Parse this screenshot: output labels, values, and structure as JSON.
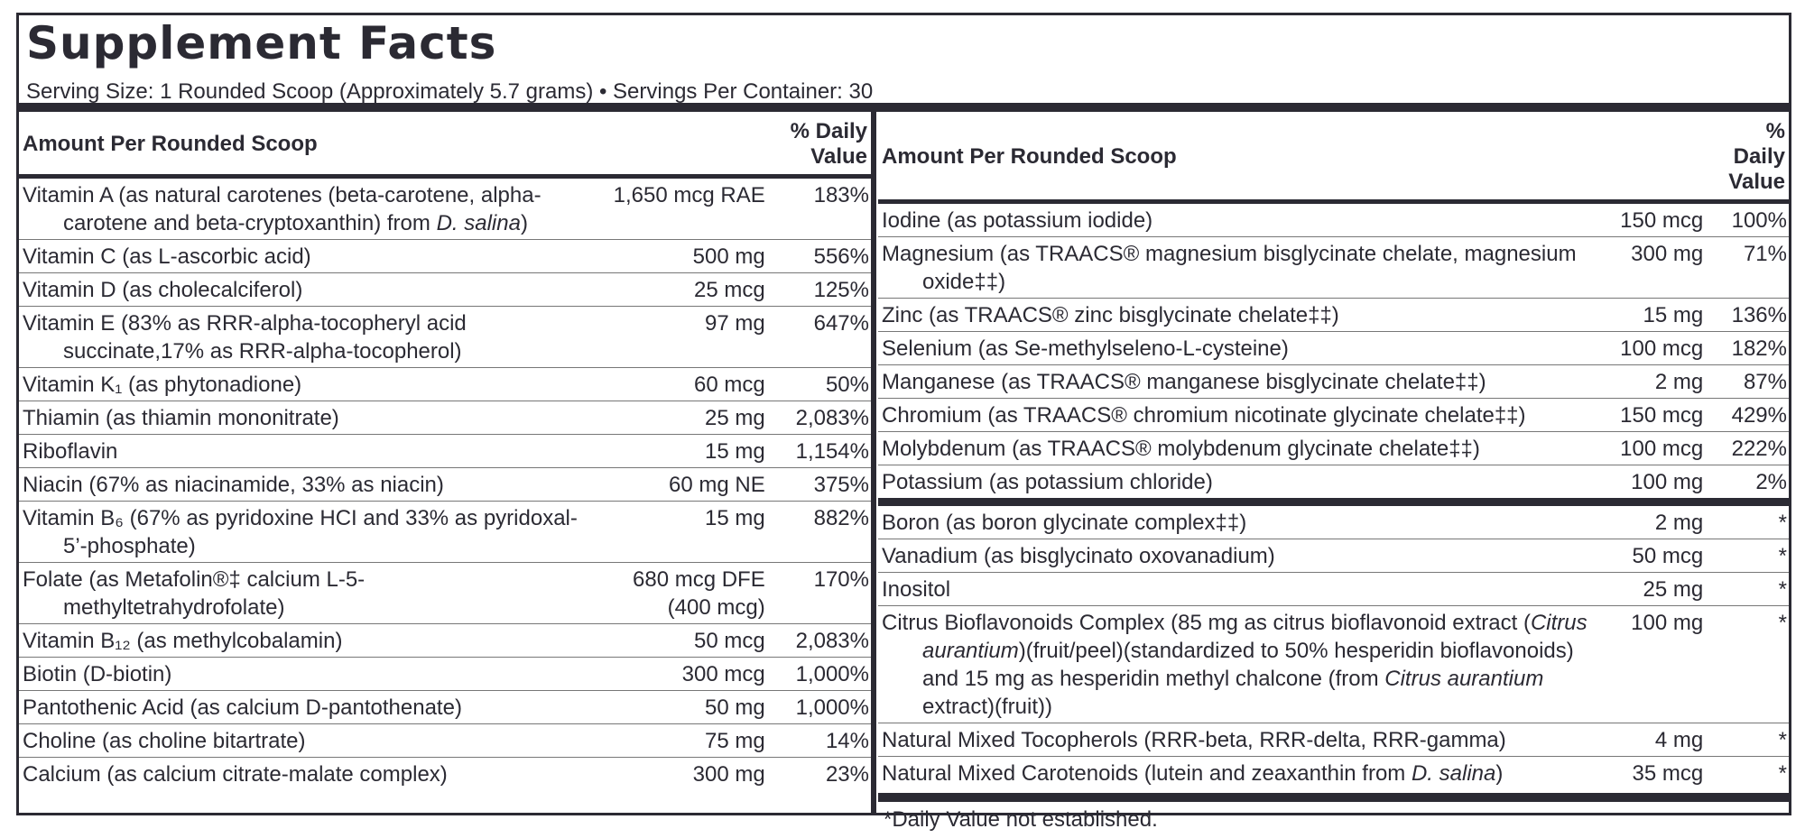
{
  "title": "Supplement Facts",
  "serving": "Serving Size: 1 Rounded Scoop (Approximately 5.7 grams) • Servings Per Container: 30",
  "left": {
    "header": {
      "amount_label": "Amount Per Rounded Scoop",
      "dv_label": "% Daily Value"
    },
    "rows": [
      {
        "name": [
          "Vitamin A (as natural carotenes (beta-carotene, alpha-carotene and beta-cryptoxanthin) from ",
          "D. salina",
          ")"
        ],
        "amount": "1,650 mcg RAE",
        "dv": "183%"
      },
      {
        "name": [
          "Vitamin C (as L-ascorbic acid)"
        ],
        "amount": "500 mg",
        "dv": "556%"
      },
      {
        "name": [
          "Vitamin D (as cholecalciferol)"
        ],
        "amount": "25 mcg",
        "dv": "125%"
      },
      {
        "name": [
          "Vitamin E (83% as RRR-alpha-tocopheryl acid succinate,17% as RRR-alpha-tocopherol)"
        ],
        "amount": "97 mg",
        "dv": "647%"
      },
      {
        "name": [
          "Vitamin K₁ (as phytonadione)"
        ],
        "amount": "60 mcg",
        "dv": "50%"
      },
      {
        "name": [
          "Thiamin (as thiamin mononitrate)"
        ],
        "amount": "25 mg",
        "dv": "2,083%"
      },
      {
        "name": [
          "Riboflavin"
        ],
        "amount": "15 mg",
        "dv": "1,154%"
      },
      {
        "name": [
          "Niacin (67% as niacinamide, 33% as niacin)"
        ],
        "amount": "60 mg NE",
        "dv": "375%"
      },
      {
        "name": [
          "Vitamin B₆ (67% as pyridoxine HCI and 33% as pyridoxal-5’-phosphate)"
        ],
        "amount": "15 mg",
        "dv": "882%"
      },
      {
        "name": [
          "Folate (as Metafolin®‡ calcium L-5-methyltetrahydrofolate)"
        ],
        "amount": "680 mcg DFE (400 mcg)",
        "dv": "170%"
      },
      {
        "name": [
          "Vitamin B₁₂ (as methylcobalamin)"
        ],
        "amount": "50 mcg",
        "dv": "2,083%"
      },
      {
        "name": [
          "Biotin (D-biotin)"
        ],
        "amount": "300 mcg",
        "dv": "1,000%"
      },
      {
        "name": [
          "Pantothenic Acid (as calcium D-pantothenate)"
        ],
        "amount": "50 mg",
        "dv": "1,000%"
      },
      {
        "name": [
          "Choline (as choline bitartrate)"
        ],
        "amount": "75 mg",
        "dv": "14%"
      },
      {
        "name": [
          "Calcium (as calcium citrate-malate complex)"
        ],
        "amount": "300 mg",
        "dv": "23%"
      }
    ]
  },
  "right": {
    "header": {
      "amount_label": "Amount Per Rounded Scoop",
      "dv_label": "% Daily Value"
    },
    "groups": [
      [
        {
          "name": [
            "Iodine (as potassium iodide)"
          ],
          "amount": "150 mcg",
          "dv": "100%"
        },
        {
          "name": [
            "Magnesium (as TRAACS® magnesium bisglycinate chelate, magnesium oxide‡‡)"
          ],
          "amount": "300 mg",
          "dv": "71%"
        },
        {
          "name": [
            "Zinc (as TRAACS® zinc bisglycinate chelate‡‡)"
          ],
          "amount": "15 mg",
          "dv": "136%"
        },
        {
          "name": [
            "Selenium (as Se-methylseleno-L-cysteine)"
          ],
          "amount": "100 mcg",
          "dv": "182%"
        },
        {
          "name": [
            "Manganese (as TRAACS® manganese bisglycinate chelate‡‡)"
          ],
          "amount": "2 mg",
          "dv": "87%"
        },
        {
          "name": [
            "Chromium (as TRAACS® chromium nicotinate glycinate chelate‡‡)"
          ],
          "amount": "150 mcg",
          "dv": "429%"
        },
        {
          "name": [
            "Molybdenum (as TRAACS® molybdenum glycinate chelate‡‡)"
          ],
          "amount": "100 mcg",
          "dv": "222%"
        },
        {
          "name": [
            "Potassium (as potassium chloride)"
          ],
          "amount": "100 mg",
          "dv": "2%"
        }
      ],
      [
        {
          "name": [
            "Boron (as boron glycinate complex‡‡)"
          ],
          "amount": "2 mg",
          "dv": "*"
        },
        {
          "name": [
            "Vanadium (as bisglycinato oxovanadium)"
          ],
          "amount": "50 mcg",
          "dv": "*"
        },
        {
          "name": [
            "Inositol"
          ],
          "amount": "25 mg",
          "dv": "*"
        },
        {
          "name": [
            "Citrus Bioflavonoids Complex (85 mg as citrus bioflavonoid extract (",
            "Citrus aurantium",
            ")(fruit/peel)(standardized to 50% hesperidin bioflavonoids) and 15 mg as hesperidin methyl chalcone (from ",
            "Citrus aurantium",
            " extract)(fruit))"
          ],
          "amount": "100 mg",
          "dv": "*"
        },
        {
          "name": [
            "Natural Mixed Tocopherols (RRR-beta, RRR-delta, RRR-gamma)"
          ],
          "amount": "4 mg",
          "dv": "*"
        },
        {
          "name": [
            "Natural Mixed Carotenoids (lutein and zeaxanthin from ",
            "D. salina",
            ")"
          ],
          "amount": "35 mcg",
          "dv": "*"
        }
      ]
    ]
  },
  "footnote": "*Daily Value not established."
}
